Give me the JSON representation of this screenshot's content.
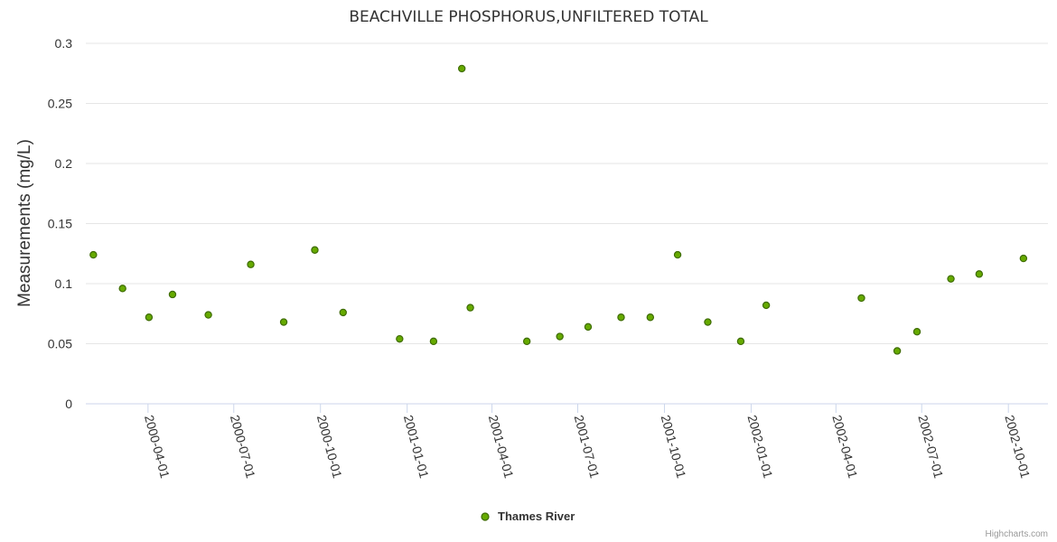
{
  "chart_data": {
    "type": "scatter",
    "title": "BEACHVILLE PHOSPHORUS,UNFILTERED TOTAL",
    "xlabel": "",
    "ylabel": "Measurements (mg/L)",
    "ylim": [
      0,
      0.3
    ],
    "yticks": [
      "0",
      "0.05",
      "0.1",
      "0.15",
      "0.2",
      "0.25",
      "0.3"
    ],
    "xlim": [
      "2000-01-26",
      "2002-11-12"
    ],
    "xticks": [
      {
        "label": "2000-04-01",
        "date": "2000-04-01"
      },
      {
        "label": "2000-07-01",
        "date": "2000-07-01"
      },
      {
        "label": "2000-10-01",
        "date": "2000-10-01"
      },
      {
        "label": "2001-01-01",
        "date": "2001-01-01"
      },
      {
        "label": "2001-04-01",
        "date": "2001-04-01"
      },
      {
        "label": "2001-07-01",
        "date": "2001-07-01"
      },
      {
        "label": "2001-10-01",
        "date": "2001-10-01"
      },
      {
        "label": "2002-01-01",
        "date": "2002-01-01"
      },
      {
        "label": "2002-04-01",
        "date": "2002-04-01"
      },
      {
        "label": "2002-07-01",
        "date": "2002-07-01"
      },
      {
        "label": "2002-10-01",
        "date": "2002-10-01"
      }
    ],
    "series": [
      {
        "name": "Thames River",
        "color": "#66aa00",
        "border": "#3d6b00",
        "points": [
          {
            "x": "2000-02-03",
            "y": 0.124
          },
          {
            "x": "2000-03-05",
            "y": 0.096
          },
          {
            "x": "2000-04-02",
            "y": 0.072
          },
          {
            "x": "2000-04-27",
            "y": 0.091
          },
          {
            "x": "2000-06-04",
            "y": 0.074
          },
          {
            "x": "2000-07-19",
            "y": 0.116
          },
          {
            "x": "2000-08-23",
            "y": 0.068
          },
          {
            "x": "2000-09-25",
            "y": 0.128
          },
          {
            "x": "2000-10-25",
            "y": 0.076
          },
          {
            "x": "2000-12-24",
            "y": 0.054
          },
          {
            "x": "2001-01-29",
            "y": 0.052
          },
          {
            "x": "2001-02-28",
            "y": 0.279
          },
          {
            "x": "2001-03-09",
            "y": 0.08
          },
          {
            "x": "2001-05-08",
            "y": 0.052
          },
          {
            "x": "2001-06-12",
            "y": 0.056
          },
          {
            "x": "2001-07-12",
            "y": 0.064
          },
          {
            "x": "2001-08-16",
            "y": 0.072
          },
          {
            "x": "2001-09-16",
            "y": 0.072
          },
          {
            "x": "2001-10-15",
            "y": 0.124
          },
          {
            "x": "2001-11-16",
            "y": 0.068
          },
          {
            "x": "2001-12-21",
            "y": 0.052
          },
          {
            "x": "2002-01-17",
            "y": 0.082
          },
          {
            "x": "2002-04-28",
            "y": 0.088
          },
          {
            "x": "2002-06-05",
            "y": 0.044
          },
          {
            "x": "2002-06-26",
            "y": 0.06
          },
          {
            "x": "2002-08-01",
            "y": 0.104
          },
          {
            "x": "2002-08-31",
            "y": 0.108
          },
          {
            "x": "2002-10-17",
            "y": 0.121
          }
        ]
      }
    ]
  },
  "legend": {
    "label": "Thames River"
  },
  "credit": "Highcharts.com"
}
